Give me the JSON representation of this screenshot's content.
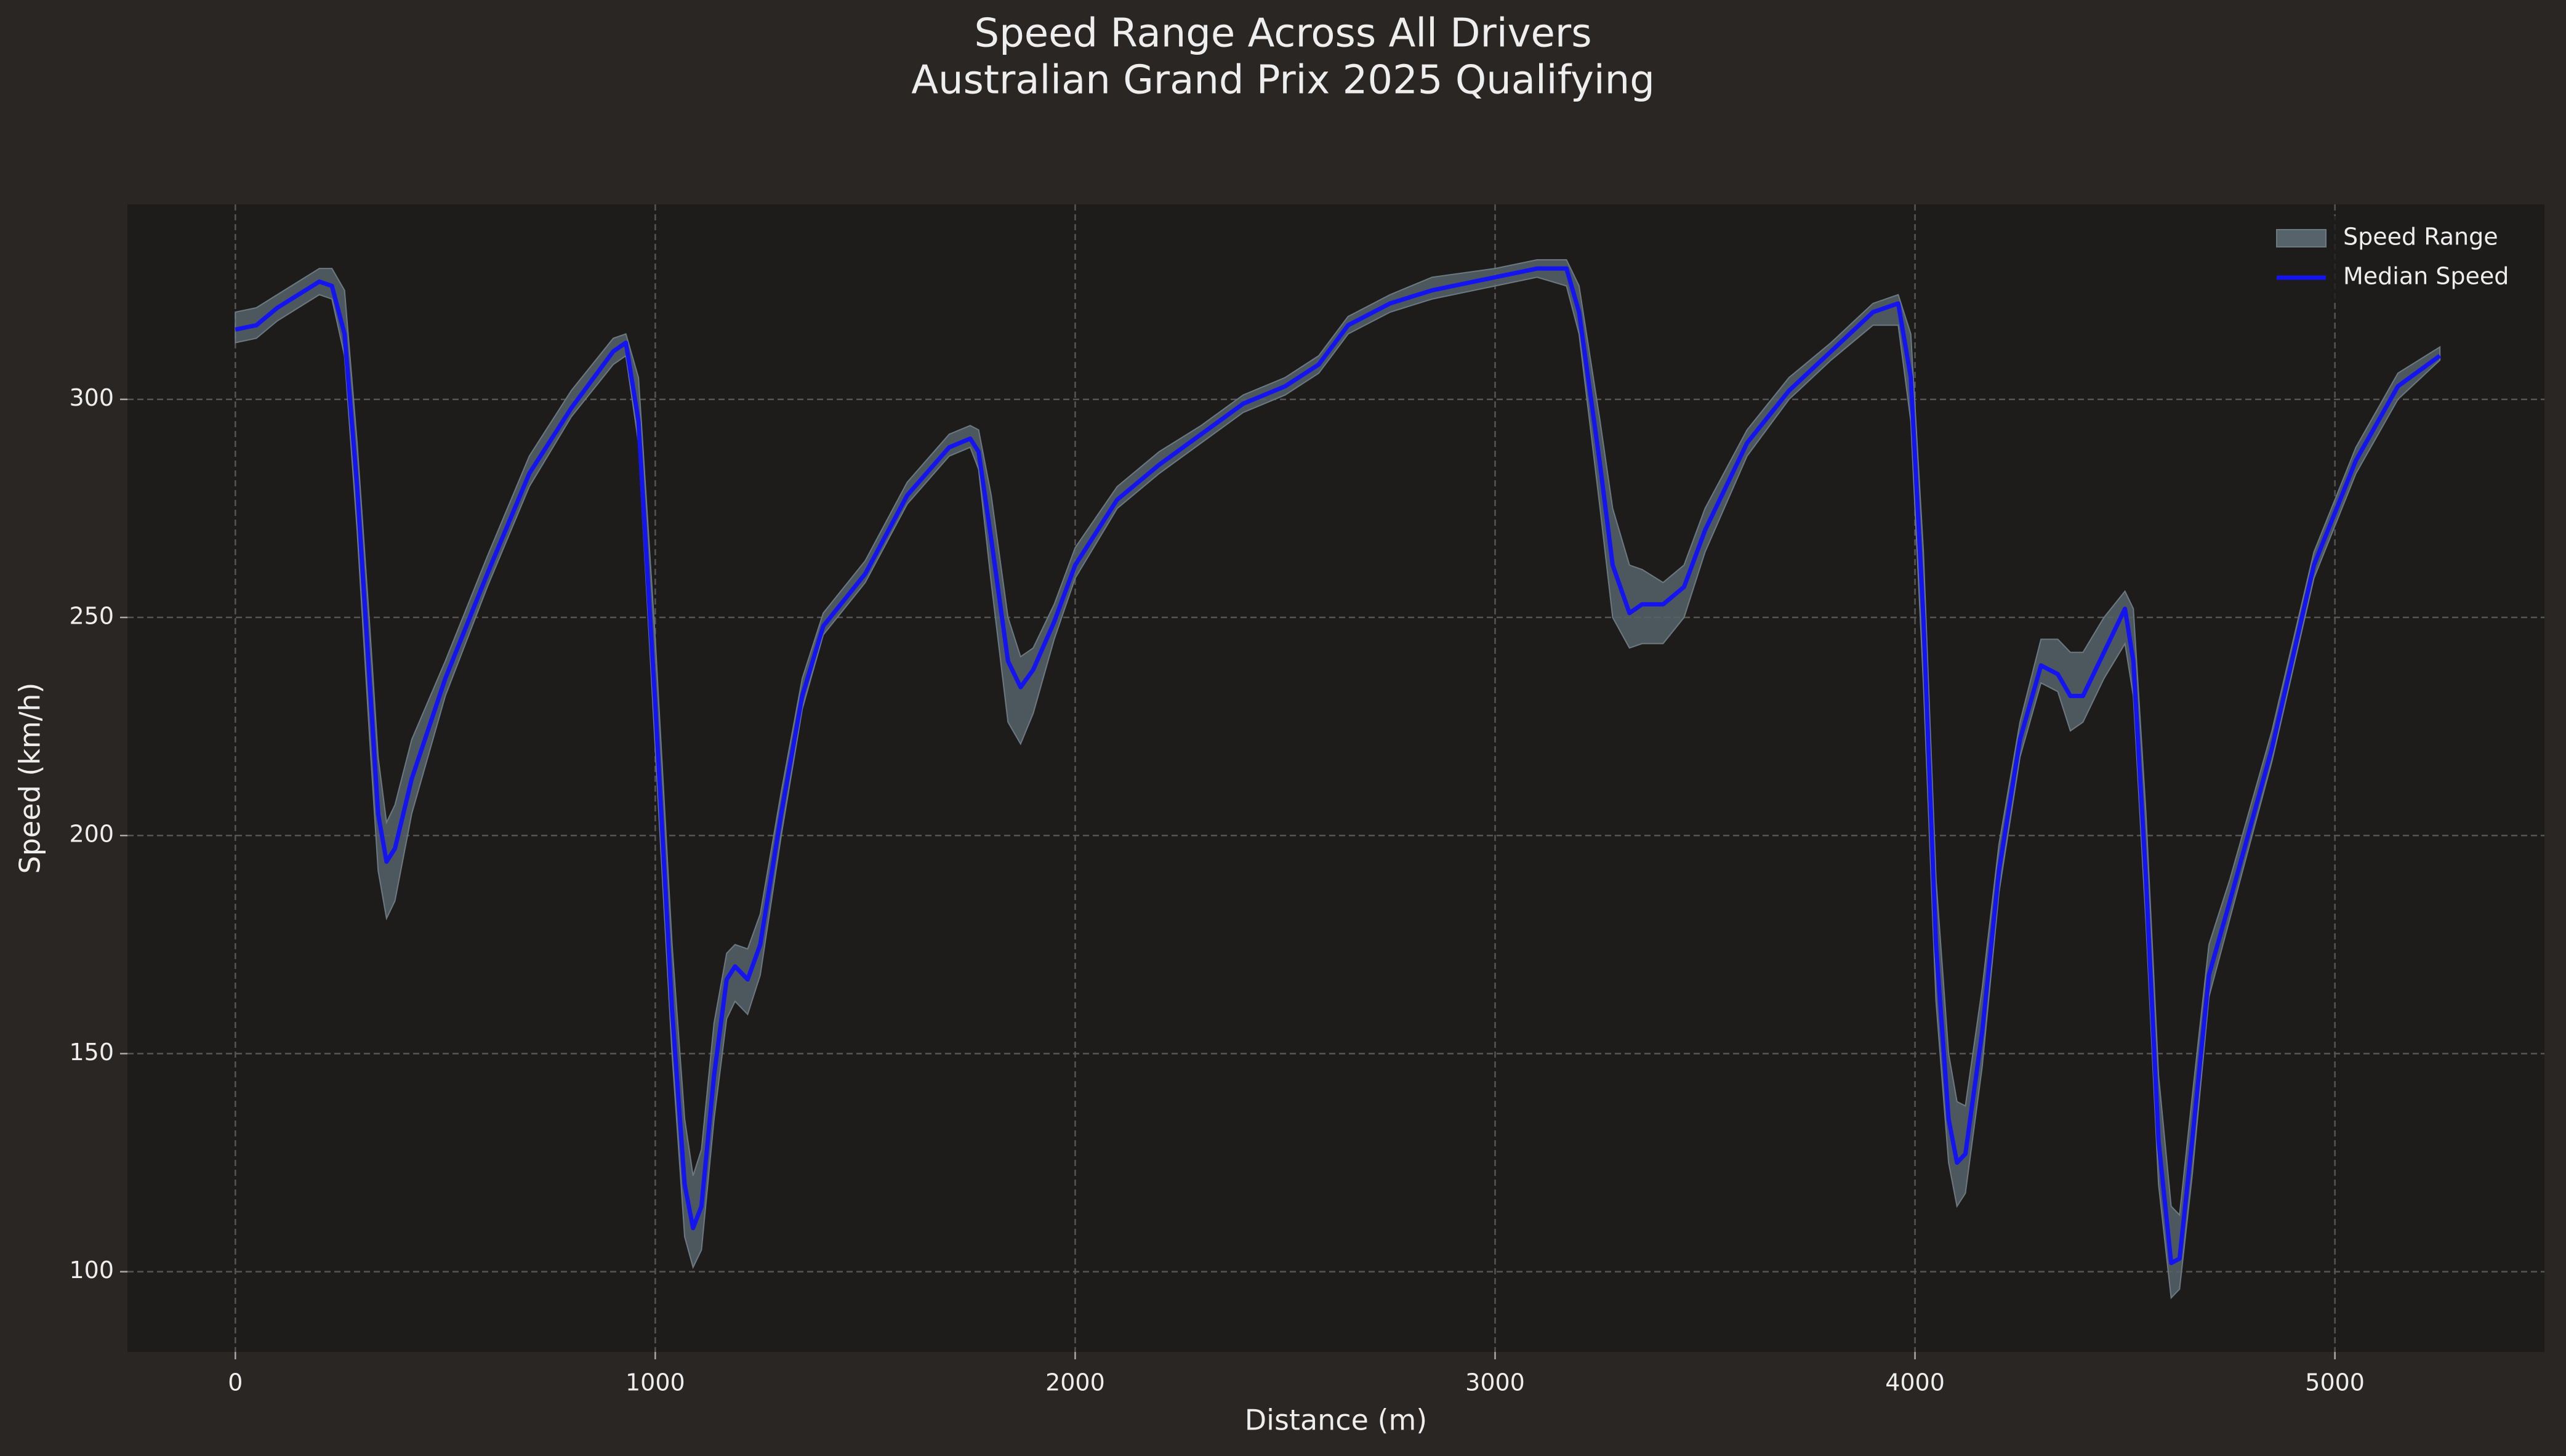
{
  "chart_data": {
    "type": "line",
    "title": "Speed Range Across All Drivers",
    "subtitle": "Australian Grand Prix 2025 Qualifying",
    "x_label": "Distance (m)",
    "y_label": "Speed (km/h)",
    "x": [
      0,
      50,
      100,
      150,
      200,
      230,
      260,
      290,
      320,
      340,
      360,
      380,
      420,
      500,
      600,
      700,
      800,
      900,
      930,
      960,
      1000,
      1040,
      1070,
      1090,
      1110,
      1140,
      1170,
      1190,
      1220,
      1250,
      1300,
      1350,
      1400,
      1500,
      1600,
      1700,
      1750,
      1770,
      1800,
      1840,
      1870,
      1900,
      1950,
      2000,
      2100,
      2200,
      2300,
      2400,
      2500,
      2580,
      2650,
      2750,
      2850,
      3000,
      3100,
      3170,
      3200,
      3250,
      3280,
      3320,
      3350,
      3400,
      3450,
      3500,
      3600,
      3700,
      3800,
      3900,
      3960,
      3990,
      4020,
      4050,
      4080,
      4100,
      4120,
      4160,
      4200,
      4250,
      4300,
      4340,
      4370,
      4400,
      4450,
      4500,
      4520,
      4550,
      4580,
      4610,
      4630,
      4660,
      4700,
      4750,
      4850,
      4950,
      5050,
      5150,
      5250
    ],
    "series": [
      {
        "name": "Speed Range",
        "color": "#56636a",
        "band": true,
        "lower": [
          313,
          314,
          318,
          321,
          324,
          323,
          310,
          270,
          222,
          192,
          181,
          185,
          205,
          232,
          257,
          280,
          296,
          308,
          310,
          290,
          220,
          150,
          108,
          101,
          105,
          135,
          158,
          162,
          159,
          168,
          200,
          229,
          246,
          258,
          276,
          287,
          289,
          284,
          258,
          226,
          221,
          228,
          245,
          259,
          275,
          283,
          290,
          297,
          301,
          306,
          315,
          320,
          323,
          326,
          328,
          326,
          315,
          275,
          250,
          243,
          244,
          244,
          250,
          265,
          287,
          300,
          309,
          317,
          317,
          295,
          235,
          162,
          125,
          115,
          118,
          147,
          187,
          218,
          235,
          233,
          224,
          226,
          236,
          244,
          232,
          180,
          120,
          94,
          96,
          122,
          163,
          181,
          217,
          259,
          283,
          300,
          309
        ],
        "upper": [
          320,
          321,
          324,
          327,
          330,
          330,
          325,
          290,
          248,
          218,
          203,
          207,
          222,
          240,
          264,
          287,
          302,
          314,
          315,
          305,
          245,
          175,
          135,
          122,
          128,
          157,
          173,
          175,
          174,
          182,
          210,
          236,
          251,
          263,
          281,
          292,
          294,
          293,
          278,
          250,
          241,
          243,
          253,
          266,
          280,
          288,
          294,
          301,
          305,
          310,
          319,
          324,
          328,
          330,
          332,
          332,
          326,
          295,
          275,
          262,
          261,
          258,
          262,
          275,
          293,
          305,
          313,
          322,
          324,
          315,
          265,
          190,
          150,
          139,
          138,
          165,
          198,
          226,
          245,
          245,
          242,
          242,
          250,
          256,
          252,
          205,
          145,
          115,
          113,
          140,
          175,
          190,
          224,
          265,
          289,
          306,
          312
        ]
      },
      {
        "name": "Median Speed",
        "color": "#1414f0",
        "values": [
          316,
          317,
          321,
          324,
          327,
          326,
          315,
          280,
          235,
          205,
          194,
          197,
          213,
          236,
          260,
          283,
          298,
          311,
          313,
          295,
          230,
          160,
          120,
          110,
          115,
          145,
          167,
          170,
          167,
          175,
          205,
          232,
          248,
          260,
          278,
          289,
          291,
          288,
          268,
          240,
          234,
          238,
          249,
          262,
          277,
          285,
          292,
          299,
          303,
          308,
          317,
          322,
          325,
          328,
          330,
          330,
          320,
          285,
          262,
          251,
          253,
          253,
          257,
          270,
          290,
          302,
          311,
          320,
          322,
          305,
          250,
          175,
          135,
          125,
          127,
          155,
          192,
          222,
          239,
          237,
          232,
          232,
          242,
          252,
          240,
          190,
          130,
          102,
          103,
          130,
          168,
          185,
          220,
          262,
          286,
          303,
          310
        ]
      }
    ],
    "xlim": [
      -257,
      5499
    ],
    "ylim": [
      81.6,
      344.7
    ],
    "xticks": [
      0,
      1000,
      2000,
      3000,
      4000,
      5000
    ],
    "yticks": [
      100,
      150,
      200,
      250,
      300
    ],
    "grid": true,
    "legend": "upper right"
  }
}
